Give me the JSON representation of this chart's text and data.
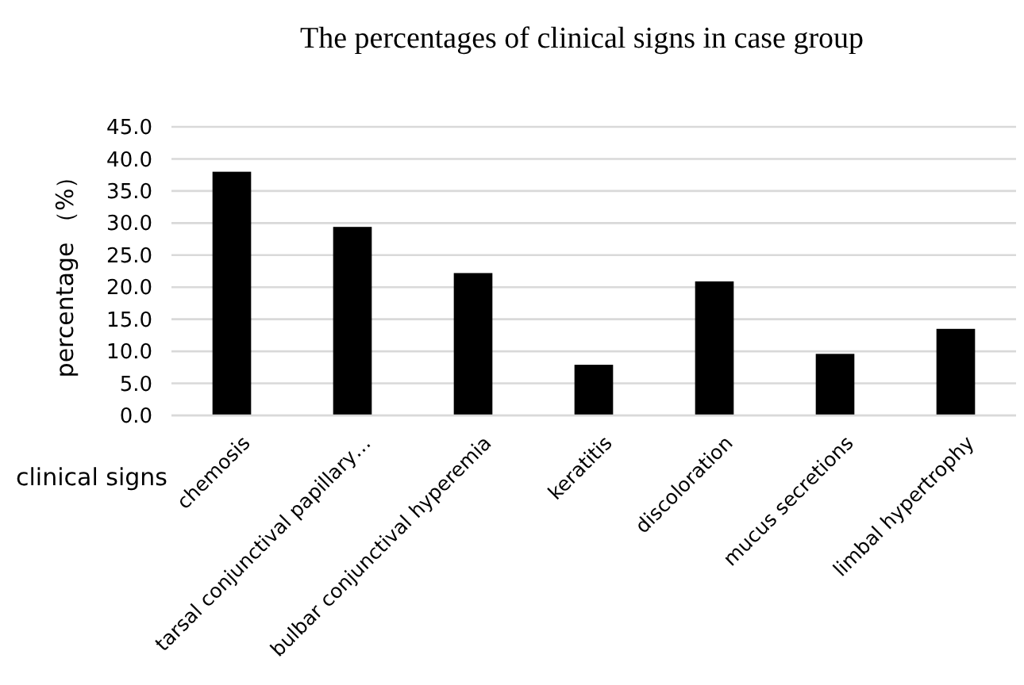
{
  "chart_data": {
    "type": "bar",
    "title": "The percentages of clinical signs in case group",
    "xlabel": "clinical signs",
    "ylabel": "percentage （%）",
    "categories": [
      "chemosis",
      "tarsal conjunctival papillary…",
      "bulbar conjunctival hyperemia",
      "keratitis",
      "discoloration",
      "mucus secretions",
      "limbal hypertrophy"
    ],
    "values": [
      38.0,
      29.4,
      22.2,
      7.9,
      20.9,
      9.6,
      13.5
    ],
    "color": "#000000",
    "ylim": [
      0,
      45
    ],
    "yticks": [
      {
        "value": 0,
        "label": "0.0"
      },
      {
        "value": 5,
        "label": "5.0"
      },
      {
        "value": 10,
        "label": "10.0"
      },
      {
        "value": 15,
        "label": "15.0"
      },
      {
        "value": 20,
        "label": "20.0"
      },
      {
        "value": 25,
        "label": "25.0"
      },
      {
        "value": 30,
        "label": "30.0"
      },
      {
        "value": 35,
        "label": "35.0"
      },
      {
        "value": 40,
        "label": "40.0"
      },
      {
        "value": 45,
        "label": "45.0"
      }
    ],
    "grid": true
  }
}
